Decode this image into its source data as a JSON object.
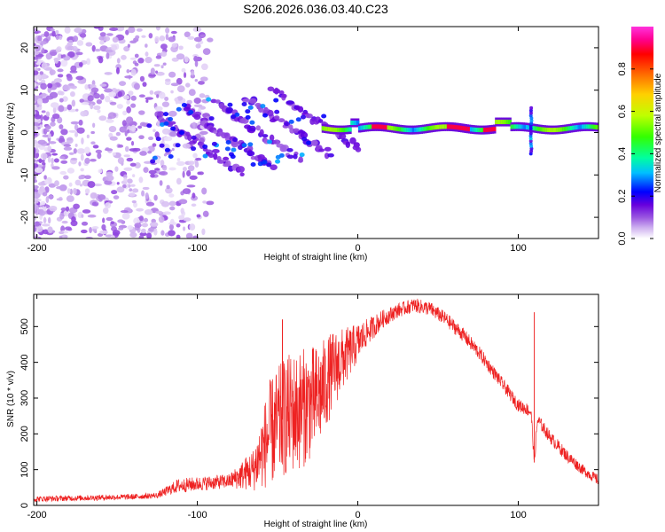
{
  "title": "S206.2026.036.03.40.C23",
  "chart_data": [
    {
      "type": "heatmap",
      "xlabel": "Height of straight line (km)",
      "ylabel": "Frequency (Hz)",
      "xlim": [
        -202,
        150
      ],
      "ylim": [
        -25,
        25
      ],
      "xticks": [
        -200,
        -100,
        0,
        100
      ],
      "yticks": [
        -20,
        -10,
        0,
        10,
        20
      ],
      "colorbar": {
        "label": "Normalized spectral amplitude",
        "range": [
          0,
          1
        ],
        "ticks": [
          0.0,
          0.2,
          0.4,
          0.6,
          0.8
        ],
        "tick_labels": [
          "0.0",
          "0.2",
          "0.4",
          "0.6",
          "0.8"
        ],
        "colors": [
          "#ffffff",
          "#cfb2f0",
          "#9955e0",
          "#6600dd",
          "#0000ff",
          "#00bfff",
          "#00ffa0",
          "#33ff00",
          "#bfff00",
          "#ffd000",
          "#ff7000",
          "#ff0000",
          "#ff0090",
          "#ff33dd"
        ]
      },
      "features": [
        {
          "name": "scattered noise",
          "x_range": [
            -202,
            -120
          ],
          "freq_range": [
            -25,
            25
          ],
          "amplitude": 0.05
        },
        {
          "name": "descending striations",
          "x_range": [
            -120,
            -20
          ],
          "freq_range": [
            -10,
            10
          ],
          "amplitude": 0.2
        },
        {
          "name": "main signal band",
          "x_range": [
            -20,
            150
          ],
          "freq": 1,
          "amplitude": 0.9
        },
        {
          "name": "spike",
          "x": 108,
          "freq_range": [
            -5,
            6
          ],
          "amplitude": 0.4
        }
      ]
    },
    {
      "type": "line",
      "xlabel": "Height of straight line (km)",
      "ylabel": "SNR (10 * v/v)",
      "xlim": [
        -202,
        150
      ],
      "ylim": [
        0,
        590
      ],
      "xticks": [
        -200,
        -100,
        0,
        100
      ],
      "yticks": [
        0,
        100,
        200,
        300,
        400,
        500
      ],
      "color": "#ee2222",
      "series": [
        {
          "name": "SNR",
          "x": [
            -202,
            -180,
            -160,
            -140,
            -125,
            -112,
            -100,
            -80,
            -65,
            -55,
            -45,
            -35,
            -25,
            -15,
            -5,
            5,
            15,
            25,
            35,
            45,
            55,
            65,
            75,
            85,
            95,
            100,
            105,
            108,
            110,
            112,
            120,
            130,
            140,
            150
          ],
          "y": [
            18,
            20,
            22,
            24,
            28,
            55,
            60,
            68,
            100,
            200,
            250,
            270,
            300,
            380,
            430,
            480,
            520,
            545,
            560,
            550,
            520,
            480,
            430,
            370,
            310,
            280,
            270,
            260,
            120,
            240,
            190,
            140,
            100,
            70
          ],
          "noise_amplitude": [
            8,
            8,
            8,
            8,
            8,
            20,
            20,
            20,
            60,
            150,
            170,
            170,
            150,
            110,
            70,
            40,
            25,
            20,
            20,
            20,
            20,
            20,
            20,
            18,
            18,
            18,
            18,
            18,
            18,
            18,
            18,
            18,
            15,
            15
          ]
        },
        {
          "name": "peaks",
          "x": [
            -47,
            110
          ],
          "y": [
            520,
            540
          ]
        }
      ]
    }
  ]
}
